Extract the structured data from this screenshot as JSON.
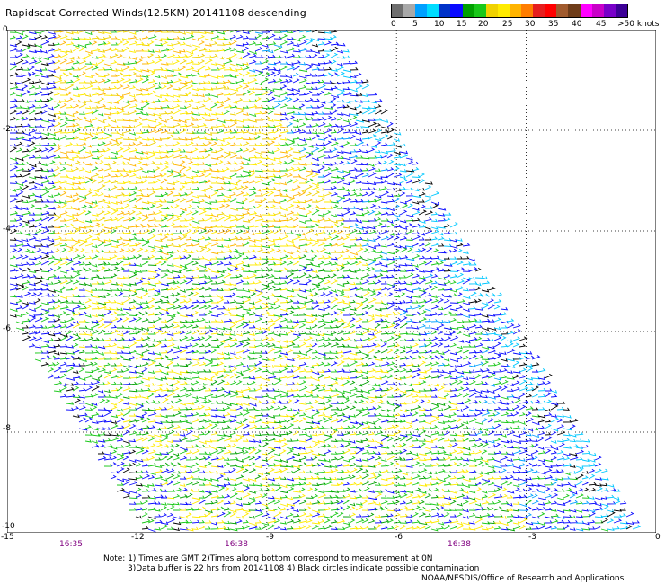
{
  "title": "Rapidscat Corrected Winds(12.5KM) 20141108 descending",
  "colorbar": {
    "colors": [
      "#6e6e6e",
      "#a8a8a8",
      "#00a0ff",
      "#00dcff",
      "#0032c8",
      "#0a0aff",
      "#00a000",
      "#19c819",
      "#f0d200",
      "#ffeb00",
      "#ffb400",
      "#ff7d00",
      "#e61e1e",
      "#ff0000",
      "#a05a2d",
      "#6e3c19",
      "#ff00ff",
      "#c800c8",
      "#7800c8",
      "#3c0096"
    ],
    "labels": [
      "0",
      "5",
      "10",
      "15",
      "20",
      "25",
      "30",
      "35",
      "40",
      "45",
      ">50 knots"
    ]
  },
  "map": {
    "lon_range": [
      -15,
      0
    ],
    "lat_range": [
      -10,
      0
    ],
    "y_ticks": [
      "0",
      "-2",
      "-4",
      "-6",
      "-8",
      "-10"
    ],
    "x_ticks": [
      "-15",
      "-12",
      "-9",
      "-6",
      "-3",
      "0"
    ],
    "time_labels": [
      "16:35",
      "16:38",
      "16:38"
    ],
    "gridlines": "dotted"
  },
  "notes": {
    "line1": "Note: 1) Times are GMT 2)Times along bottom correspond to measurement at 0N",
    "line2": "3)Data buffer is 22 hrs from 20141108 4) Black circles indicate possible contamination",
    "credit": "NOAA/NESDIS/Office of Research and Applications"
  }
}
